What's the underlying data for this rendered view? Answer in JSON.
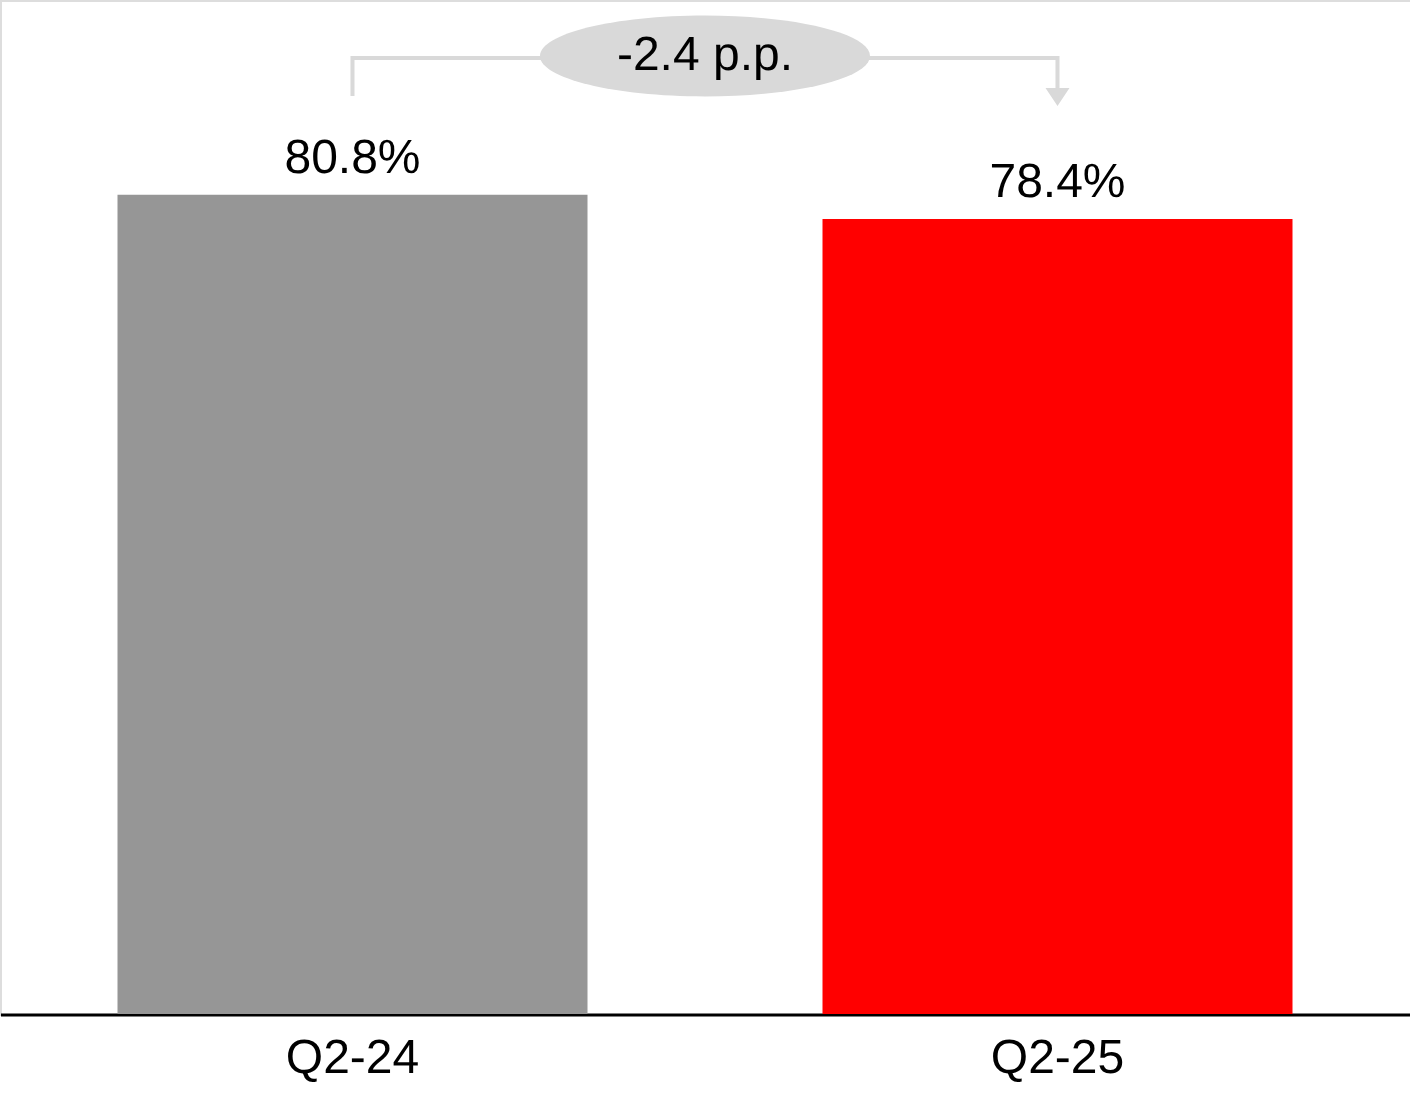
{
  "chart_data": {
    "type": "bar",
    "categories": [
      "Q2-24",
      "Q2-25"
    ],
    "values": [
      80.8,
      78.4
    ],
    "colors": [
      "#969696",
      "#ff0000"
    ],
    "value_labels": [
      "80.8%",
      "78.4%"
    ],
    "ylim": [
      0,
      100
    ],
    "tick_labels": "x",
    "annotations": [
      "-2.4 p.p."
    ]
  }
}
